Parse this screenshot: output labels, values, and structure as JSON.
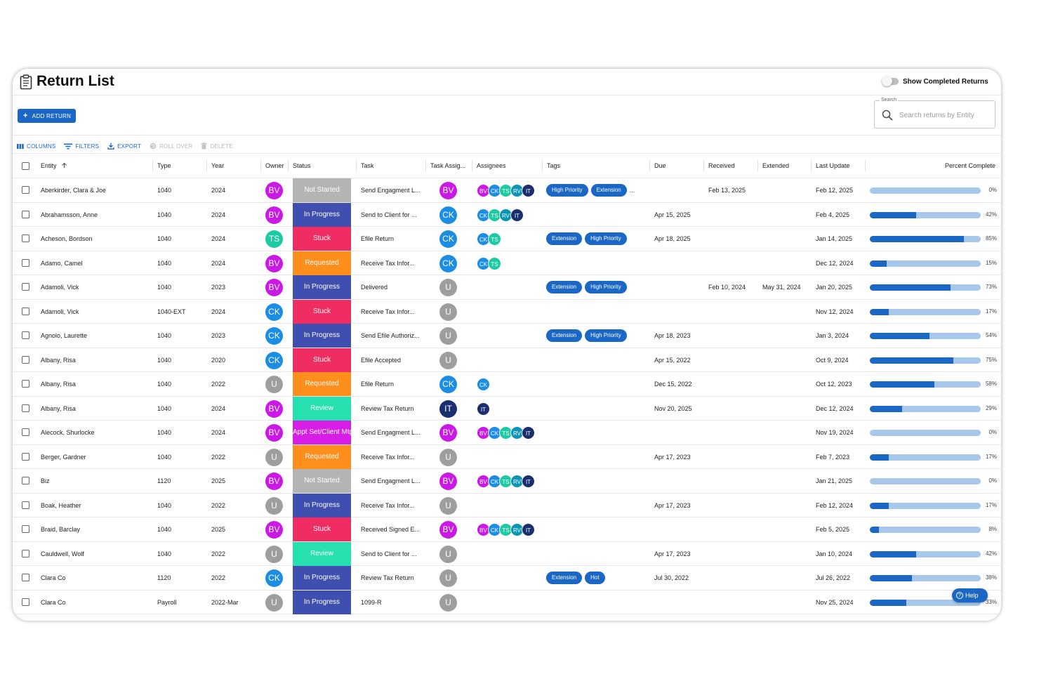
{
  "header": {
    "title": "Return List",
    "show_completed_label": "Show Completed Returns"
  },
  "actions": {
    "add_return_label": "ADD RETURN"
  },
  "search": {
    "legend": "Search",
    "placeholder": "Search returns by Entity"
  },
  "toolbar": {
    "columns": "COLUMNS",
    "filters": "FILTERS",
    "export": "EXPORT",
    "roll_over": "ROLL OVER",
    "delete": "DELETE"
  },
  "columns": {
    "entity": "Entity",
    "type": "Type",
    "year": "Year",
    "owner": "Owner",
    "status": "Status",
    "task": "Task",
    "task_assignee": "Task Assig...",
    "assignees": "Assignees",
    "tags": "Tags",
    "due": "Due",
    "received": "Received",
    "extended": "Extended",
    "last_update": "Last Update",
    "percent_complete": "Percent Complete"
  },
  "colors": {
    "accent": "#1a67c6",
    "status": {
      "Not Started": "#b4b4b4",
      "In Progress": "#3f4fb0",
      "Stuck": "#ef2d63",
      "Requested": "#ff8f1c",
      "Review": "#27e0b0",
      "Appt Set/Client Mtg": "#d81de6"
    },
    "people": {
      "BV": "#cc18e6",
      "CK": "#1b8de4",
      "TS": "#1ccba3",
      "RV": "#0c93b8",
      "IT": "#1b2f6e",
      "U": "#9e9e9e"
    }
  },
  "rows": [
    {
      "entity": "Aberkirder, Clara & Joe",
      "type": "1040",
      "year": "2024",
      "owner": "BV",
      "status": "Not Started",
      "task": "Send Engagment L...",
      "task_assignee": "BV",
      "assignees": [
        "BV",
        "CK",
        "TS",
        "RV",
        "IT"
      ],
      "tags": [
        "High Priority",
        "Extension"
      ],
      "tags_more": "...",
      "due": "",
      "received": "Feb 13, 2025",
      "extended": "",
      "last_update": "Feb 12, 2025",
      "percent": 0,
      "percent_label": "0%"
    },
    {
      "entity": "Abrahamsson, Anne",
      "type": "1040",
      "year": "2024",
      "owner": "BV",
      "status": "In Progress",
      "task": "Send to Client for ...",
      "task_assignee": "CK",
      "assignees": [
        "CK",
        "TS",
        "RV",
        "IT"
      ],
      "tags": [],
      "due": "Apr 15, 2025",
      "received": "",
      "extended": "",
      "last_update": "Feb 4, 2025",
      "percent": 42,
      "percent_label": "42%"
    },
    {
      "entity": "Acheson, Bordson",
      "type": "1040",
      "year": "2024",
      "owner": "TS",
      "status": "Stuck",
      "task": "Efile Return",
      "task_assignee": "CK",
      "assignees": [
        "CK",
        "TS"
      ],
      "tags": [
        "Extension",
        "High Priority"
      ],
      "due": "Apr 18, 2025",
      "received": "",
      "extended": "",
      "last_update": "Jan 14, 2025",
      "percent": 85,
      "percent_label": "85%"
    },
    {
      "entity": "Adamo, Camel",
      "type": "1040",
      "year": "2024",
      "owner": "BV",
      "status": "Requested",
      "task": "Receive Tax Infor...",
      "task_assignee": "CK",
      "assignees": [
        "CK",
        "TS"
      ],
      "tags": [],
      "due": "",
      "received": "",
      "extended": "",
      "last_update": "Dec 12, 2024",
      "percent": 15,
      "percent_label": "15%"
    },
    {
      "entity": "Adamoli, Vick",
      "type": "1040",
      "year": "2023",
      "owner": "BV",
      "status": "In Progress",
      "task": "Delivered",
      "task_assignee": "U",
      "assignees": [],
      "tags": [
        "Extension",
        "High Priority"
      ],
      "due": "",
      "received": "Feb 10, 2024",
      "extended": "May 31, 2024",
      "last_update": "Jan 20, 2025",
      "percent": 73,
      "percent_label": "73%"
    },
    {
      "entity": "Adamoli, Vick",
      "type": "1040-EXT",
      "year": "2024",
      "owner": "CK",
      "status": "Stuck",
      "task": "Receive Tax Infor...",
      "task_assignee": "U",
      "assignees": [],
      "tags": [],
      "due": "",
      "received": "",
      "extended": "",
      "last_update": "Nov 12, 2024",
      "percent": 17,
      "percent_label": "17%"
    },
    {
      "entity": "Agnolo, Laurette",
      "type": "1040",
      "year": "2023",
      "owner": "CK",
      "status": "In Progress",
      "task": "Send Efile Authoriz...",
      "task_assignee": "U",
      "assignees": [],
      "tags": [
        "Extension",
        "High Priority"
      ],
      "due": "Apr 18, 2023",
      "received": "",
      "extended": "",
      "last_update": "Jan 3, 2024",
      "percent": 54,
      "percent_label": "54%"
    },
    {
      "entity": "Albany, Risa",
      "type": "1040",
      "year": "2020",
      "owner": "CK",
      "status": "Stuck",
      "task": "Efile Accepted",
      "task_assignee": "U",
      "assignees": [],
      "tags": [],
      "due": "Apr 15, 2022",
      "received": "",
      "extended": "",
      "last_update": "Oct 9, 2024",
      "percent": 75,
      "percent_label": "75%"
    },
    {
      "entity": "Albany, Risa",
      "type": "1040",
      "year": "2022",
      "owner": "U",
      "status": "Requested",
      "task": "Efile Return",
      "task_assignee": "CK",
      "assignees": [
        "CK"
      ],
      "tags": [],
      "due": "Dec 15, 2022",
      "received": "",
      "extended": "",
      "last_update": "Oct 12, 2023",
      "percent": 58,
      "percent_label": "58%"
    },
    {
      "entity": "Albany, Risa",
      "type": "1040",
      "year": "2024",
      "owner": "BV",
      "status": "Review",
      "task": "Review Tax Return",
      "task_assignee": "IT",
      "assignees": [
        "IT"
      ],
      "tags": [],
      "due": "Nov 20, 2025",
      "received": "",
      "extended": "",
      "last_update": "Dec 12, 2024",
      "percent": 29,
      "percent_label": "29%"
    },
    {
      "entity": "Alecock, Shurlocke",
      "type": "1040",
      "year": "2024",
      "owner": "BV",
      "status": "Appt Set/Client Mtg",
      "task": "Send Engagment L...",
      "task_assignee": "BV",
      "assignees": [
        "BV",
        "CK",
        "TS",
        "RV",
        "IT"
      ],
      "tags": [],
      "due": "",
      "received": "",
      "extended": "",
      "last_update": "Nov 19, 2024",
      "percent": 0,
      "percent_label": "0%"
    },
    {
      "entity": "Berger, Gardner",
      "type": "1040",
      "year": "2022",
      "owner": "U",
      "status": "Requested",
      "task": "Receive Tax Infor...",
      "task_assignee": "U",
      "assignees": [],
      "tags": [],
      "due": "Apr 17, 2023",
      "received": "",
      "extended": "",
      "last_update": "Feb 7, 2023",
      "percent": 17,
      "percent_label": "17%"
    },
    {
      "entity": "Biz",
      "type": "1120",
      "year": "2025",
      "owner": "BV",
      "status": "Not Started",
      "task": "Send Engagment L...",
      "task_assignee": "BV",
      "assignees": [
        "BV",
        "CK",
        "TS",
        "RV",
        "IT"
      ],
      "tags": [],
      "due": "",
      "received": "",
      "extended": "",
      "last_update": "Jan 21, 2025",
      "percent": 0,
      "percent_label": "0%"
    },
    {
      "entity": "Boak, Heather",
      "type": "1040",
      "year": "2022",
      "owner": "U",
      "status": "In Progress",
      "task": "Receive Tax Infor...",
      "task_assignee": "U",
      "assignees": [],
      "tags": [],
      "due": "Apr 17, 2023",
      "received": "",
      "extended": "",
      "last_update": "Feb 12, 2024",
      "percent": 17,
      "percent_label": "17%"
    },
    {
      "entity": "Braid, Barclay",
      "type": "1040",
      "year": "2025",
      "owner": "BV",
      "status": "Stuck",
      "task": "Received Signed E...",
      "task_assignee": "BV",
      "assignees": [
        "BV",
        "CK",
        "TS",
        "RV",
        "IT"
      ],
      "tags": [],
      "due": "",
      "received": "",
      "extended": "",
      "last_update": "Feb 5, 2025",
      "percent": 8,
      "percent_label": "8%"
    },
    {
      "entity": "Cauldwell, Wolf",
      "type": "1040",
      "year": "2022",
      "owner": "U",
      "status": "Review",
      "task": "Send to Client for ...",
      "task_assignee": "U",
      "assignees": [],
      "tags": [],
      "due": "Apr 17, 2023",
      "received": "",
      "extended": "",
      "last_update": "Jan 10, 2024",
      "percent": 42,
      "percent_label": "42%"
    },
    {
      "entity": "Clara Co",
      "type": "1120",
      "year": "2022",
      "owner": "CK",
      "status": "In Progress",
      "task": "Review Tax Return",
      "task_assignee": "U",
      "assignees": [],
      "tags": [
        "Extension",
        "Hot"
      ],
      "due": "Jul 30, 2022",
      "received": "",
      "extended": "",
      "last_update": "Jul 26, 2022",
      "percent": 38,
      "percent_label": "38%"
    },
    {
      "entity": "Clara Co",
      "type": "Payroll",
      "year": "2022-Mar",
      "owner": "U",
      "status": "In Progress",
      "task": "1099-R",
      "task_assignee": "U",
      "assignees": [],
      "tags": [],
      "due": "",
      "received": "",
      "extended": "",
      "last_update": "Nov 25, 2024",
      "percent": 33,
      "percent_label": "33%"
    }
  ],
  "help_label": "Help"
}
